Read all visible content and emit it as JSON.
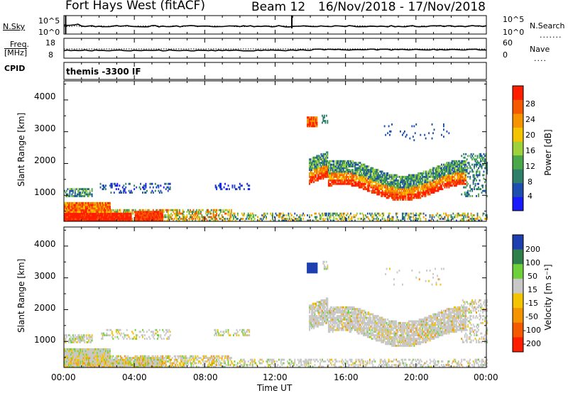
{
  "header": {
    "site": "Fort Hays West (fitACF)",
    "beam": "Beam 12",
    "dates": "16/Nov/2018 - 17/Nov/2018"
  },
  "top_panels": {
    "nsky_label": "N.Sky",
    "nsky_ticks": [
      "10^5",
      "10^0"
    ],
    "nsearch_label": "N.Search",
    "nsearch_ticks": [
      "10^5",
      "10^0"
    ],
    "freq_label": "Freq.",
    "freq_unit": "[MHz]",
    "freq_ticks": [
      "18",
      "8"
    ],
    "nave_label": "Nave",
    "nave_ticks": [
      "60",
      "0"
    ],
    "cpid_label": "CPID",
    "cpid_value": "themis -3300 IF"
  },
  "chart_data": [
    {
      "type": "heatmap",
      "name": "power",
      "ylabel": "Slant Range [km]",
      "ylim": [
        180,
        4600
      ],
      "yticks": [
        "1000",
        "2000",
        "3000",
        "4000"
      ],
      "xlabel": "",
      "colorbar_label": "Power [dB]",
      "colorbar_ticks": [
        "4",
        "8",
        "12",
        "16",
        "20",
        "24",
        "28"
      ],
      "colors": [
        "#1a1aff",
        "#1e4fb0",
        "#2f7f6a",
        "#4aa84a",
        "#9ed13a",
        "#f5c400",
        "#f59300",
        "#f55a00",
        "#ff1e00"
      ],
      "regions": [
        {
          "t0": 0.0,
          "t1": 3.8,
          "r0": 220,
          "r1": 420,
          "level": "high"
        },
        {
          "t0": 0.0,
          "t1": 2.5,
          "r0": 420,
          "r1": 750,
          "level": "mid-high"
        },
        {
          "t0": 0.0,
          "t1": 1.5,
          "r0": 950,
          "r1": 1200,
          "level": "mid"
        },
        {
          "t0": 3.8,
          "t1": 9.0,
          "r0": 250,
          "r1": 560,
          "level": "mid"
        },
        {
          "t0": 4.0,
          "t1": 5.5,
          "r0": 260,
          "r1": 480,
          "level": "high"
        },
        {
          "t0": 2.0,
          "t1": 6.0,
          "r0": 1050,
          "r1": 1350,
          "level": "low"
        },
        {
          "t0": 13.8,
          "t1": 14.3,
          "r0": 3150,
          "r1": 3450,
          "level": "high"
        },
        {
          "t0": 13.9,
          "t1": 22.8,
          "r0": 1000,
          "r1": 2100,
          "level": "mid-high"
        }
      ]
    },
    {
      "type": "heatmap",
      "name": "velocity",
      "ylabel": "Slant Range [km]",
      "ylim": [
        180,
        4600
      ],
      "yticks": [
        "1000",
        "2000",
        "3000",
        "4000"
      ],
      "xlabel": "Time UT",
      "xticks": [
        "00:00",
        "04:00",
        "08:00",
        "12:00",
        "16:00",
        "20:00",
        "00:00"
      ],
      "colorbar_label": "Velocity [m s⁻¹]",
      "colorbar_ticks": [
        "200",
        "100",
        "50",
        "15",
        "-15",
        "-50",
        "-100",
        "-200"
      ],
      "colors": [
        "#1e3fb0",
        "#2f7f4a",
        "#6fd13a",
        "#c8c8c8",
        "#f5c400",
        "#f59300",
        "#f55a00",
        "#ff1e00"
      ]
    }
  ]
}
